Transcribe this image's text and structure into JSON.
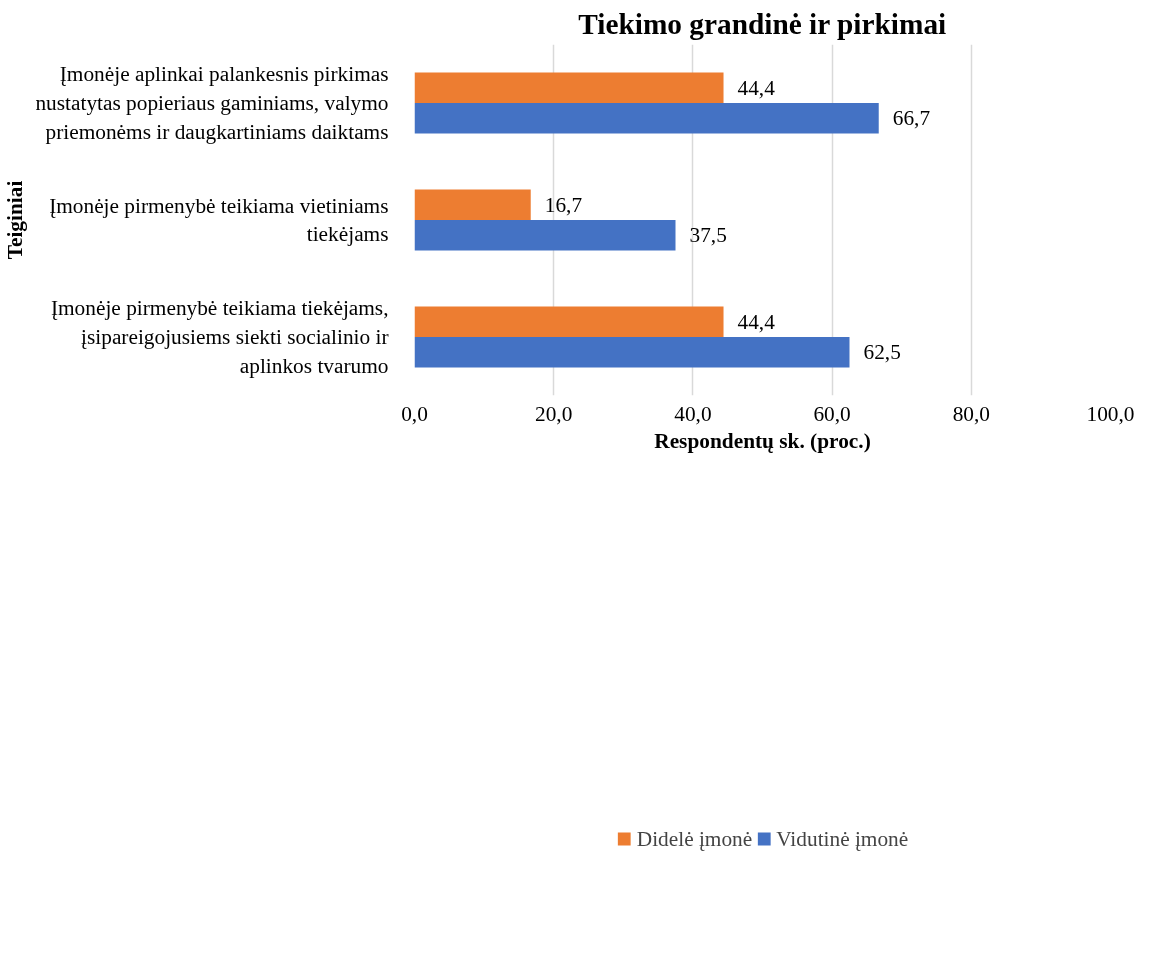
{
  "chart_data": {
    "type": "bar",
    "orientation": "horizontal",
    "title": "Tiekimo grandinė ir pirkimai",
    "xlabel": "Respondentų sk. (proc.)",
    "ylabel": "Teiginiai",
    "categories": [
      "Įmonėje aplinkai palankesnis pirkimas nustatytas popieriaus gaminiams, valymo priemonėms ir daugkartiniams daiktams",
      "Įmonėje pirmenybė teikiama vietiniams tiekėjams",
      "Įmonėje pirmenybė teikiama tiekėjams, įsipareigojusiems siekti socialinio ir aplinkos tvarumo"
    ],
    "series": [
      {
        "name": "Didelė įmonė",
        "color": "#ed7d31",
        "values": [
          44.4,
          16.7,
          44.4
        ],
        "value_labels": [
          "44,4",
          "16,7",
          "44,4"
        ]
      },
      {
        "name": "Vidutinė įmonė",
        "color": "#4472c4",
        "values": [
          66.7,
          37.5,
          62.5
        ],
        "value_labels": [
          "66,7",
          "37,5",
          "62,5"
        ]
      }
    ],
    "xlim": [
      0,
      100
    ],
    "xticks": [
      {
        "value": 0,
        "label": "0,0"
      },
      {
        "value": 20,
        "label": "20,0"
      },
      {
        "value": 40,
        "label": "40,0"
      },
      {
        "value": 60,
        "label": "60,0"
      },
      {
        "value": 80,
        "label": "80,0"
      },
      {
        "value": 100,
        "label": "100,0"
      }
    ],
    "grid": "x",
    "legend": "bottom"
  }
}
